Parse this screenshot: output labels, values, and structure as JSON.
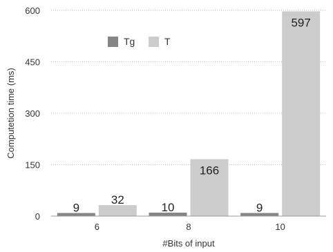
{
  "chart_data": {
    "type": "bar",
    "categories": [
      "6",
      "8",
      "10"
    ],
    "series": [
      {
        "name": "Tg",
        "values": [
          9,
          10,
          9
        ],
        "color": "#858585"
      },
      {
        "name": "T",
        "values": [
          32,
          166,
          597
        ],
        "color": "#cccccc"
      }
    ],
    "xlabel": "#Bits of input",
    "ylabel": "Computetion time (ms)",
    "ylim": [
      0,
      600
    ],
    "yticks": [
      0,
      150,
      300,
      450,
      600
    ],
    "grid": true,
    "grid_style": "dotted",
    "legend_position": "top-left"
  }
}
